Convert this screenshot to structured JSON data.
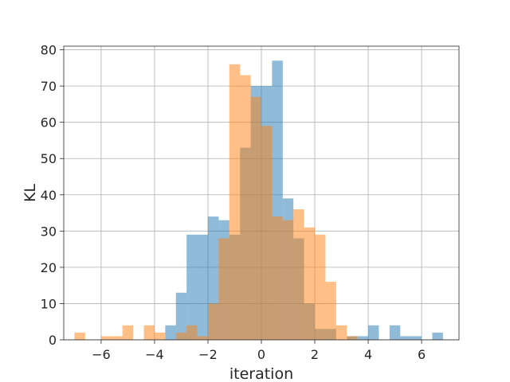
{
  "chart_data": {
    "type": "bar",
    "subtype": "overlaid-histogram",
    "title": "",
    "xlabel": "iteration",
    "ylabel": "KL",
    "xlim": [
      -7.4,
      7.4
    ],
    "ylim": [
      0,
      81
    ],
    "xticks": [
      -6,
      -4,
      -2,
      0,
      2,
      4,
      6
    ],
    "yticks": [
      0,
      10,
      20,
      30,
      40,
      50,
      60,
      70,
      80
    ],
    "grid": true,
    "legend": "none",
    "series": [
      {
        "color": "#1f77b4",
        "alpha": 0.5,
        "bins": [
          {
            "x0": -3.6,
            "x1": -3.2,
            "count": 4
          },
          {
            "x0": -3.2,
            "x1": -2.8,
            "count": 13
          },
          {
            "x0": -2.8,
            "x1": -2.4,
            "count": 29
          },
          {
            "x0": -2.4,
            "x1": -2.0,
            "count": 29
          },
          {
            "x0": -2.0,
            "x1": -1.6,
            "count": 34
          },
          {
            "x0": -1.6,
            "x1": -1.2,
            "count": 33
          },
          {
            "x0": -1.2,
            "x1": -0.8,
            "count": 29
          },
          {
            "x0": -0.8,
            "x1": -0.4,
            "count": 53
          },
          {
            "x0": -0.4,
            "x1": 0.0,
            "count": 70
          },
          {
            "x0": 0.0,
            "x1": 0.4,
            "count": 70
          },
          {
            "x0": 0.4,
            "x1": 0.8,
            "count": 77
          },
          {
            "x0": 0.8,
            "x1": 1.2,
            "count": 39
          },
          {
            "x0": 1.2,
            "x1": 1.6,
            "count": 28
          },
          {
            "x0": 1.6,
            "x1": 2.0,
            "count": 10
          },
          {
            "x0": 2.0,
            "x1": 2.4,
            "count": 3
          },
          {
            "x0": 2.4,
            "x1": 2.8,
            "count": 3
          },
          {
            "x0": 3.2,
            "x1": 3.6,
            "count": 1
          },
          {
            "x0": 3.6,
            "x1": 4.0,
            "count": 1
          },
          {
            "x0": 4.0,
            "x1": 4.4,
            "count": 4
          },
          {
            "x0": 4.8,
            "x1": 5.2,
            "count": 4
          },
          {
            "x0": 5.2,
            "x1": 5.6,
            "count": 1
          },
          {
            "x0": 5.6,
            "x1": 6.0,
            "count": 1
          },
          {
            "x0": 6.4,
            "x1": 6.8,
            "count": 2
          }
        ]
      },
      {
        "color": "#ff7f0e",
        "alpha": 0.5,
        "bins": [
          {
            "x0": -7.0,
            "x1": -6.6,
            "count": 2
          },
          {
            "x0": -6.0,
            "x1": -5.6,
            "count": 1
          },
          {
            "x0": -5.6,
            "x1": -5.2,
            "count": 1
          },
          {
            "x0": -5.2,
            "x1": -4.8,
            "count": 4
          },
          {
            "x0": -4.4,
            "x1": -4.0,
            "count": 4
          },
          {
            "x0": -4.0,
            "x1": -3.6,
            "count": 2
          },
          {
            "x0": -3.2,
            "x1": -2.8,
            "count": 2
          },
          {
            "x0": -2.8,
            "x1": -2.4,
            "count": 4
          },
          {
            "x0": -2.4,
            "x1": -2.0,
            "count": 1
          },
          {
            "x0": -2.0,
            "x1": -1.6,
            "count": 10
          },
          {
            "x0": -1.6,
            "x1": -1.2,
            "count": 28
          },
          {
            "x0": -1.2,
            "x1": -0.8,
            "count": 76
          },
          {
            "x0": -0.8,
            "x1": -0.4,
            "count": 73
          },
          {
            "x0": -0.4,
            "x1": 0.0,
            "count": 67
          },
          {
            "x0": 0.0,
            "x1": 0.4,
            "count": 59
          },
          {
            "x0": 0.4,
            "x1": 0.8,
            "count": 34
          },
          {
            "x0": 0.8,
            "x1": 1.2,
            "count": 33
          },
          {
            "x0": 1.2,
            "x1": 1.6,
            "count": 36
          },
          {
            "x0": 1.6,
            "x1": 2.0,
            "count": 31
          },
          {
            "x0": 2.0,
            "x1": 2.4,
            "count": 29
          },
          {
            "x0": 2.4,
            "x1": 2.8,
            "count": 16
          },
          {
            "x0": 2.8,
            "x1": 3.2,
            "count": 4
          },
          {
            "x0": 3.2,
            "x1": 3.6,
            "count": 1
          }
        ]
      }
    ]
  }
}
